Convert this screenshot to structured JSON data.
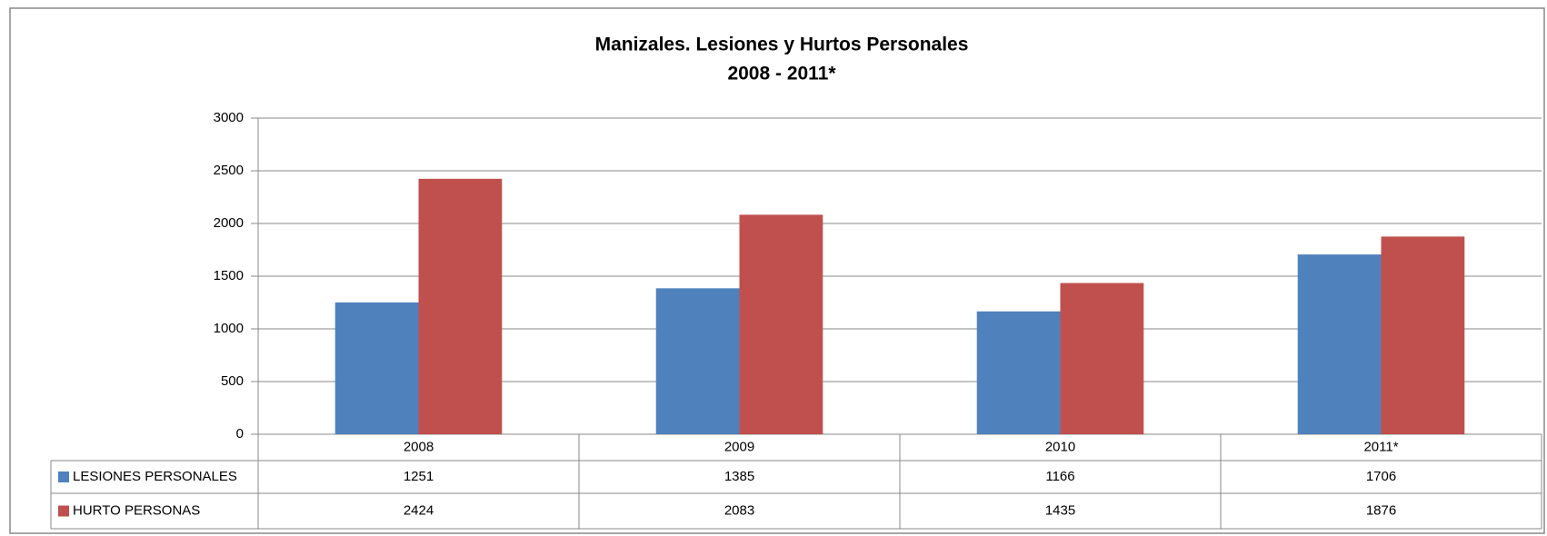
{
  "chart_data": {
    "type": "bar",
    "title": "Manizales.  Lesiones y Hurtos  Personales",
    "subtitle": "2008 - 2011*",
    "categories": [
      "2008",
      "2009",
      "2010",
      "2011*"
    ],
    "series": [
      {
        "name": "LESIONES PERSONALES",
        "color": "#4f81bd",
        "values": [
          1251,
          1385,
          1166,
          1706
        ]
      },
      {
        "name": "HURTO PERSONAS",
        "color": "#c0504d",
        "values": [
          2424,
          2083,
          1435,
          1876
        ]
      }
    ],
    "ylim": [
      0,
      3000
    ],
    "yticks": [
      0,
      500,
      1000,
      1500,
      2000,
      2500,
      3000
    ],
    "grid": true
  }
}
